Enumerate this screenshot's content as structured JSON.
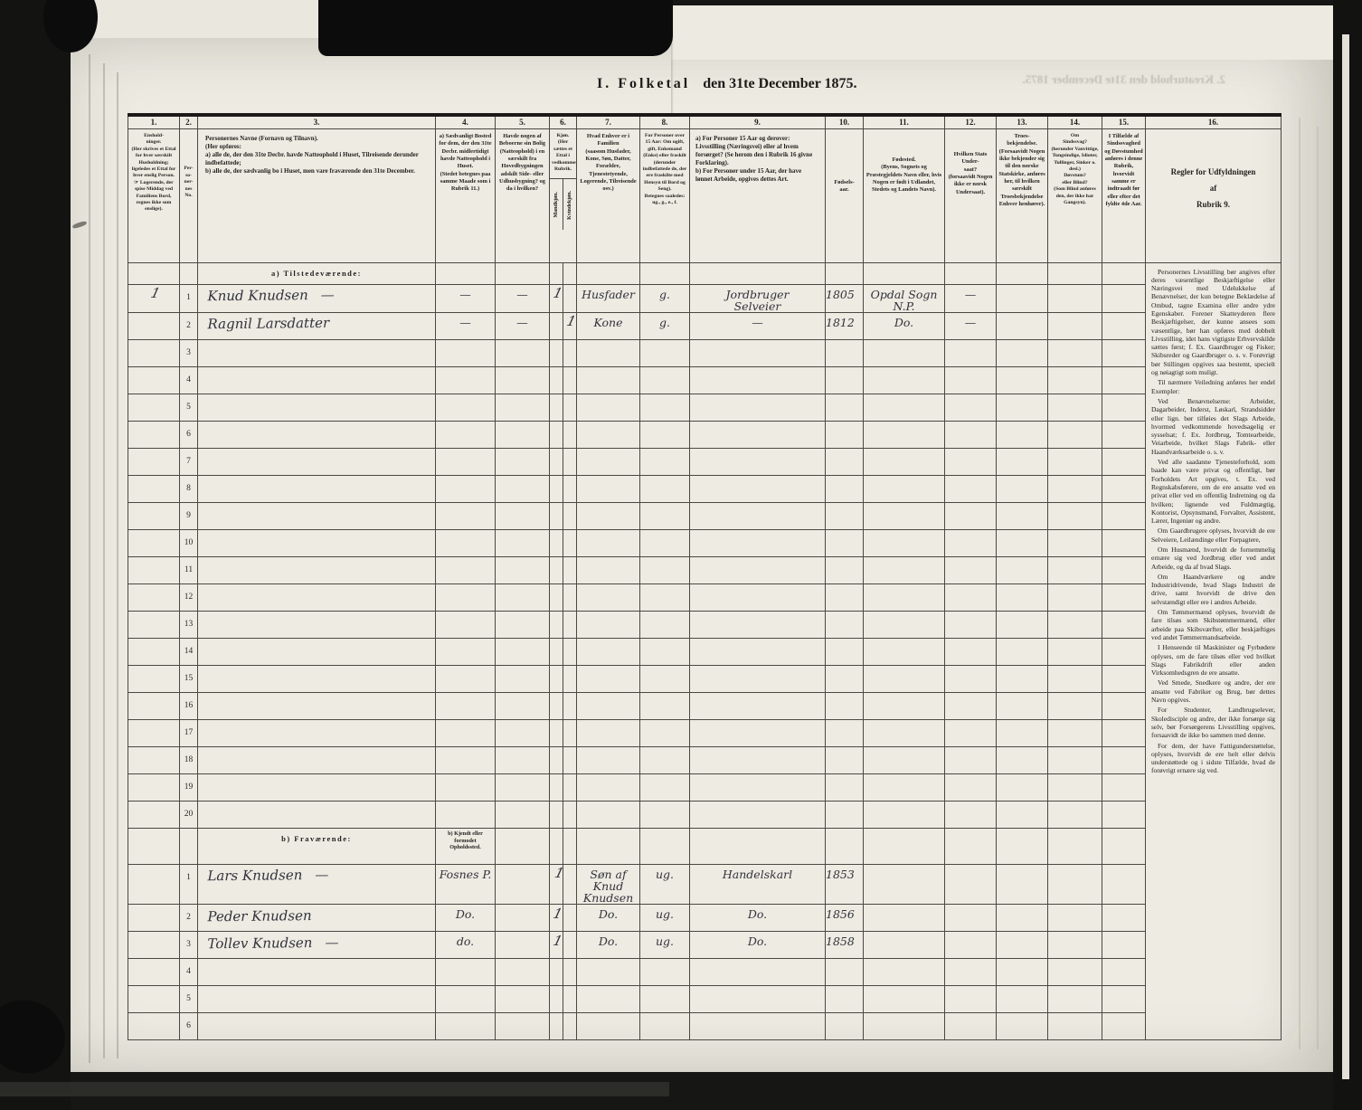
{
  "scan": {
    "title_left": "I. Folketal",
    "title_right": "den 31te December 1875.",
    "bleed_through": "2. Kreaturhold den 31te December 1875."
  },
  "table": {
    "columns": [
      {
        "no": "1.",
        "text": "Enshold-\nninger.\n(Her skrives et Ettal for hver særskilt Husholdning; ligeledes et Ettal for hver enslig Person.\n☞ Logerende, der spise Middag ved Familiens Bord, regnes ikke som enslige)."
      },
      {
        "no": "2.",
        "lines": [
          "Per-",
          "so-",
          "ner-",
          "nes",
          "No."
        ]
      },
      {
        "no": "3.",
        "text": "Personernes Navne (Fornavn og Tilnavn).\n(Her opføres:\na) alle de, der den 31te Decbr. havde Natteophold i Huset, Tilreisende derunder indbefattede;\nb) alle de, der sædvanlig bo i Huset, men vare fraværende den 31te December."
      },
      {
        "no": "4.",
        "text": "a) Sædvanligt Bosted for dem, der den 31te Decbr. midlertidigt havde Natteophold i Huset.\n(Stedet betegnes paa samme Maade som i Rubrik 11.)"
      },
      {
        "no": "5.",
        "text": "Havde nogen af Beboerne sin Bolig (Natteophold) i en særskilt fra Hovedbygningen adskilt Side- eller Udhusbygning? og da i hvilken?"
      },
      {
        "no": "6.",
        "text": "Kjøn.\n(Her sættes et Ettal i vedkommende Rubrik.",
        "sub": [
          "Mandkjøn.",
          "Kvindekjøn."
        ]
      },
      {
        "no": "7.",
        "text": "Hvad Enhver er i Familien\n(saasom Husfader, Kone, Søn, Datter, Forældre, Tjenestetyende, Logerende, Tilreisende osv.)"
      },
      {
        "no": "8.",
        "text": "For Personer over 15 Aar: Om ugift, gift, Enkemand (Enke) eller fraskilt (derunder indbefattede de, der ere fraskilte med Hensyn til Bord og Seng).\nBetegnes saaledes:\nug., g., e., f."
      },
      {
        "no": "9.",
        "text": "a) For Personer 15 Aar og derover: Livsstilling (Næringsvei) eller af hvem forsørget? (Se herom den i Rubrik 16 givne Forklaring).\nb) For Personer under 15 Aar, der have lønnet Arbeide, opgives dettes Art."
      },
      {
        "no": "10.",
        "text": "Fødsels-\naar."
      },
      {
        "no": "11.",
        "text": "Fødested.\n(Byens, Sognets og Præstegjeldets Navn eller, hvis Nogen er født i Udlandet, Stedets og Landets Navn)."
      },
      {
        "no": "12.",
        "text": "Hvilken Stats Under-\nsaat?\n(forsaavidt Nogen ikke er norsk Undersaat)."
      },
      {
        "no": "13.",
        "text": "Troes-\nbekjendelse.\n(Forsaavidt Nogen ikke bekjender sig til den norske Statskirke, anføres her, til hvilken særskilt Troesbekjendelse Enhver henhører)."
      },
      {
        "no": "14.",
        "text": "Om\nSindssvag?\n(herunder Vanvittige, Tungsindige, Idioter, Tullinger, Sinker o. desl.)\nDøvstum?\neller Blind?\n(Som Blind anføres den, der ikke har Gangsyn)."
      },
      {
        "no": "15.",
        "text": "I Tilfælde af Sindssvaghed og Døvstumhed anføres i denne Rubrik, hvorvidt samme er indtraadt før eller efter det fyldte 4de Aar."
      },
      {
        "no": "16.",
        "text": "Regler for Udfyldningen\naf\nRubrik 9."
      }
    ],
    "rubrik16": {
      "paragraphs": [
        "Personernes Livsstilling bør angives efter deres væsentlige Beskjæftigelse eller Næringsvei med Udelukkelse af Benævnelser, der kun betegne Beklædelse af Ombud, tagne Examina eller andre ydre Egenskaber. Forener Skatteyderen flere Beskjæftigelser, der kunne ansees som væsentlige, bør han opføres med dobbelt Livsstilling, idet hans vigtigste Erhvervskilde sættes først; f. Ex. Gaardbruger og Fisker; Skibsreder og Gaardbruger o. s. v. Forøvrigt bør Stillingen opgives saa bestemt, specielt og nøiagtigt som muligt.",
        "Til nærmere Veiledning anføres her endel Exempler:",
        "Ved Benævnelserne: Arbeider, Dagarbeider, Inderst, Løskarl, Strandsidder eller lign. bør tilføies det Slags Arbeide, hvormed vedkommende hovedsagelig er sysselsat; f. Ex. Jordbrug, Tomtearbeide, Veiarbeide, hvilket Slags Fabrik- eller Haandværksarbeide o. s. v.",
        "Ved alle saadanne Tjenesteforhold, som baade kan være privat og offentligt, bør Forholdets Art opgives, t. Ex. ved Regnskabsførere, om de ere ansatte ved en privat eller ved en offentlig Indretning og da hvilken; lignende ved Fuldmægtig, Kontorist, Opsynsmand, Forvalter, Assistent, Lærer, Ingeniør og andre.",
        "Om Gaardbrugere oplyses, hvorvidt de ere Selveiere, Leilændinge eller Forpagtere,",
        "Om Husmænd, hvorvidt de fornemmelig ernære sig ved Jordbrug eller ved andet Arbeide, og da af hvad Slags.",
        "Om Haandværkere og andre Industridrivende, hvad Slags Industri de drive, samt hvorvidt de drive den selvstændigt eller ere i andres Arbeide.",
        "Om Tømmermænd oplyses, hvorvidt de fare tilsøs som Skibstømmermænd, eller arbeide paa Skibsværfter, eller beskjæftiges ved andet Tømmermandsarbeide.",
        "I Henseende til Maskinister og Fyrbødere oplyses, om de fare tilsøs eller ved hvilket Slags Fabrikdrift eller anden Virksomhedsgren de ere ansatte.",
        "Ved Smede, Snedkere og andre, der ere ansatte ved Fabriker og Brug, bør dettes Navn opgives.",
        "For Studenter, Landbrugselever, Skoledisciple og andre, der ikke forsørge sig selv, bør Forsørgerens Livsstilling opgives, forsaavidt de ikke bo sammen med denne.",
        "For dem, der have Fattigunderstøttelse, oplyses, hvorvidt de ere helt eller delvis understøttede og i sidste Tilfælde, hvad de forøvrigt ernære sig ved."
      ]
    },
    "section_a": {
      "label": "a) Tilstedeværende:",
      "rows": [
        {
          "no": "1",
          "household": "1",
          "name": "Knud Knudsen",
          "dash": "—",
          "c4": "—",
          "c5": "—",
          "c6a": "1",
          "c7": "Husfader",
          "c8": "g.",
          "c9": "Jordbruger\nSelveier",
          "c10": "1805",
          "c11": "Opdal Sogn\nN.P.",
          "c12": "—"
        },
        {
          "no": "2",
          "name": "Ragnil Larsdatter",
          "c4": "—",
          "c5": "—",
          "c6b": "1",
          "c7": "Kone",
          "c8": "g.",
          "c9": "—",
          "c10": "1812",
          "c11": "Do.",
          "c12": "—"
        },
        {
          "no": "3"
        },
        {
          "no": "4"
        },
        {
          "no": "5"
        },
        {
          "no": "6"
        },
        {
          "no": "7"
        },
        {
          "no": "8"
        },
        {
          "no": "9"
        },
        {
          "no": "10"
        },
        {
          "no": "11"
        },
        {
          "no": "12"
        },
        {
          "no": "13"
        },
        {
          "no": "14"
        },
        {
          "no": "15"
        },
        {
          "no": "16"
        },
        {
          "no": "17"
        },
        {
          "no": "18"
        },
        {
          "no": "19"
        },
        {
          "no": "20"
        }
      ]
    },
    "section_b": {
      "label": "b) Fraværende:",
      "col4_header": "b) Kjendt eller\nformodet\nOpholdssted.",
      "rows": [
        {
          "no": "1",
          "name": "Lars Knudsen",
          "dash": "—",
          "c4": "Fosnes P.",
          "c6a": "1",
          "c7": "Søn af\nKnud Knudsen",
          "c8": "ug.",
          "c9": "Handelskarl",
          "c10": "1853"
        },
        {
          "no": "2",
          "name": "Peder Knudsen",
          "c4": "Do.",
          "c6a": "1",
          "c7": "Do.",
          "c8": "ug.",
          "c9": "Do.",
          "c10": "1856"
        },
        {
          "no": "3",
          "name": "Tollev Knudsen",
          "dash": "—",
          "c4": "do.",
          "c6a": "1",
          "c7": "Do.",
          "c8": "ug.",
          "c9": "Do.",
          "c10": "1858"
        },
        {
          "no": "4"
        },
        {
          "no": "5"
        },
        {
          "no": "6"
        }
      ]
    }
  }
}
